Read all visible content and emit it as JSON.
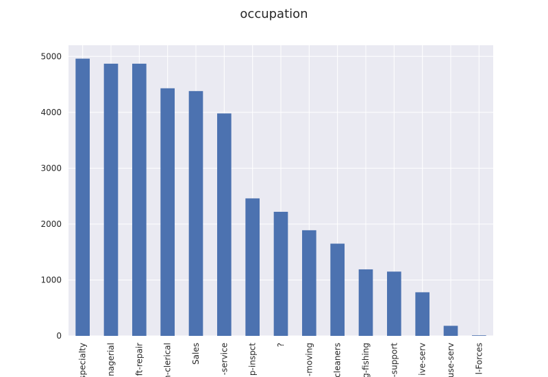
{
  "chart_data": {
    "type": "bar",
    "title": "occupation",
    "xlabel": "",
    "ylabel": "",
    "categories": [
      "specialty",
      "nagerial",
      "ft-repair",
      "n-clerical",
      "Sales",
      "-service",
      "p-inspct",
      "?",
      "-moving",
      "cleaners",
      "g-fishing",
      "-support",
      "ive-serv",
      "use-serv",
      "l-Forces"
    ],
    "values": [
      4960,
      4870,
      4870,
      4430,
      4380,
      3980,
      2460,
      2220,
      1890,
      1650,
      1190,
      1150,
      780,
      180,
      10
    ],
    "ylim": [
      0,
      5200
    ],
    "yticks": [
      0,
      1000,
      2000,
      3000,
      4000,
      5000
    ],
    "grid": true,
    "legend": false,
    "colors": {
      "bar": "#4c72b0",
      "plot_background": "#eaeaf2",
      "grid": "#ffffff",
      "text": "#262626"
    }
  }
}
